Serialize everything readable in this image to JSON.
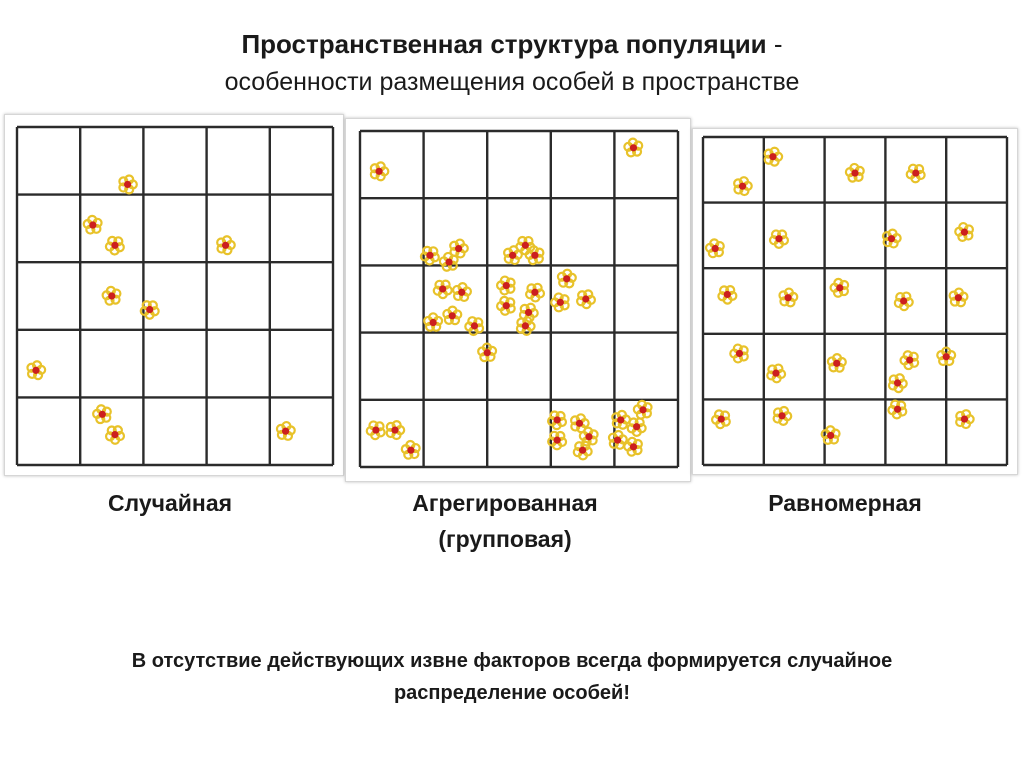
{
  "header": {
    "title_bold": "Пространственная структура популяции",
    "title_dash": " -",
    "subtitle": "особенности размещения особей в пространстве"
  },
  "panels": [
    {
      "label": "Случайная",
      "individuals": [
        [
          1.75,
          0.85
        ],
        [
          1.2,
          1.45
        ],
        [
          1.55,
          1.75
        ],
        [
          3.3,
          1.75
        ],
        [
          1.5,
          2.5
        ],
        [
          2.1,
          2.7
        ],
        [
          0.3,
          3.6
        ],
        [
          1.35,
          4.25
        ],
        [
          1.55,
          4.55
        ],
        [
          4.25,
          4.5
        ]
      ]
    },
    {
      "label_line1": "Агрегированная",
      "label_line2": "(групповая)",
      "individuals": [
        [
          0.3,
          0.6
        ],
        [
          4.3,
          0.25
        ],
        [
          1.1,
          1.85
        ],
        [
          1.55,
          1.75
        ],
        [
          1.4,
          1.95
        ],
        [
          2.6,
          1.7
        ],
        [
          2.4,
          1.85
        ],
        [
          2.75,
          1.85
        ],
        [
          1.3,
          2.35
        ],
        [
          1.6,
          2.4
        ],
        [
          2.3,
          2.3
        ],
        [
          2.75,
          2.4
        ],
        [
          3.25,
          2.2
        ],
        [
          3.15,
          2.55
        ],
        [
          3.55,
          2.5
        ],
        [
          1.45,
          2.75
        ],
        [
          2.3,
          2.6
        ],
        [
          2.65,
          2.7
        ],
        [
          1.15,
          2.85
        ],
        [
          1.8,
          2.9
        ],
        [
          2.6,
          2.9
        ],
        [
          2.0,
          3.3
        ],
        [
          0.25,
          4.45
        ],
        [
          0.55,
          4.45
        ],
        [
          0.8,
          4.75
        ],
        [
          3.1,
          4.3
        ],
        [
          3.45,
          4.35
        ],
        [
          3.6,
          4.55
        ],
        [
          3.1,
          4.6
        ],
        [
          4.1,
          4.3
        ],
        [
          4.45,
          4.15
        ],
        [
          4.35,
          4.4
        ],
        [
          4.05,
          4.6
        ],
        [
          4.3,
          4.7
        ],
        [
          3.5,
          4.75
        ]
      ]
    },
    {
      "label": "Равномерная",
      "individuals": [
        [
          1.15,
          0.3
        ],
        [
          2.5,
          0.55
        ],
        [
          3.5,
          0.55
        ],
        [
          0.65,
          0.75
        ],
        [
          0.2,
          1.7
        ],
        [
          1.25,
          1.55
        ],
        [
          3.1,
          1.55
        ],
        [
          4.3,
          1.45
        ],
        [
          0.4,
          2.4
        ],
        [
          1.4,
          2.45
        ],
        [
          2.25,
          2.3
        ],
        [
          3.3,
          2.5
        ],
        [
          4.2,
          2.45
        ],
        [
          0.6,
          3.3
        ],
        [
          1.2,
          3.6
        ],
        [
          2.2,
          3.45
        ],
        [
          3.4,
          3.4
        ],
        [
          3.2,
          3.75
        ],
        [
          4.0,
          3.35
        ],
        [
          0.3,
          4.3
        ],
        [
          1.3,
          4.25
        ],
        [
          2.1,
          4.55
        ],
        [
          3.2,
          4.15
        ],
        [
          4.3,
          4.3
        ]
      ]
    }
  ],
  "note_line1": "В отсутствие действующих извне факторов всегда формируется случайное",
  "note_line2": "распределение особей!",
  "colors": {
    "petal": "#e8c22a",
    "center": "#cc1f1f",
    "grid": "#2b2b2b"
  }
}
